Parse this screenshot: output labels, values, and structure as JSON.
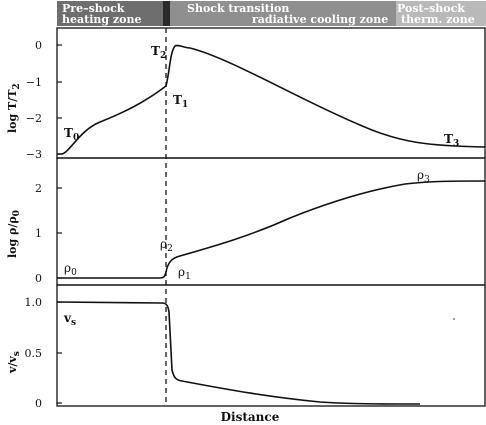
{
  "zones": {
    "preshock_line1": "Pre–shock",
    "preshock_line2": "heating zone",
    "shock_transition": "Shock transition",
    "radiative_cooling": "radiative cooling zone",
    "postshock_line1": "Post–shock",
    "postshock_line2": "therm. zone",
    "colors": {
      "dark": "#6e6e6e",
      "darkest": "#2b2b2b",
      "mid": "#8f8f8f",
      "light": "#b9b9b9"
    }
  },
  "x_axis_label": "Distance",
  "panels": {
    "temperature": {
      "ylabel": "log T/T",
      "ylabel_sub": "2",
      "yticks": [
        "0",
        "−1",
        "−2",
        "−3"
      ],
      "labels": {
        "T0": "T",
        "T0_sub": "0",
        "T1": "T",
        "T1_sub": "1",
        "T2": "T",
        "T2_sub": "2",
        "T3": "T",
        "T3_sub": "3"
      }
    },
    "density": {
      "ylabel": "log ρ/ρ",
      "ylabel_sub": "0",
      "yticks": [
        "2",
        "1",
        "0"
      ],
      "labels": {
        "rho0": "ρ",
        "rho0_sub": "0",
        "rho1": "ρ",
        "rho1_sub": "1",
        "rho2": "ρ",
        "rho2_sub": "2",
        "rho3": "ρ",
        "rho3_sub": "3"
      }
    },
    "velocity": {
      "ylabel": "v/v",
      "ylabel_sub": "s",
      "yticks": [
        "1.0",
        "0.5",
        "0"
      ],
      "labels": {
        "vs": "v",
        "vs_sub": "s"
      }
    }
  }
}
